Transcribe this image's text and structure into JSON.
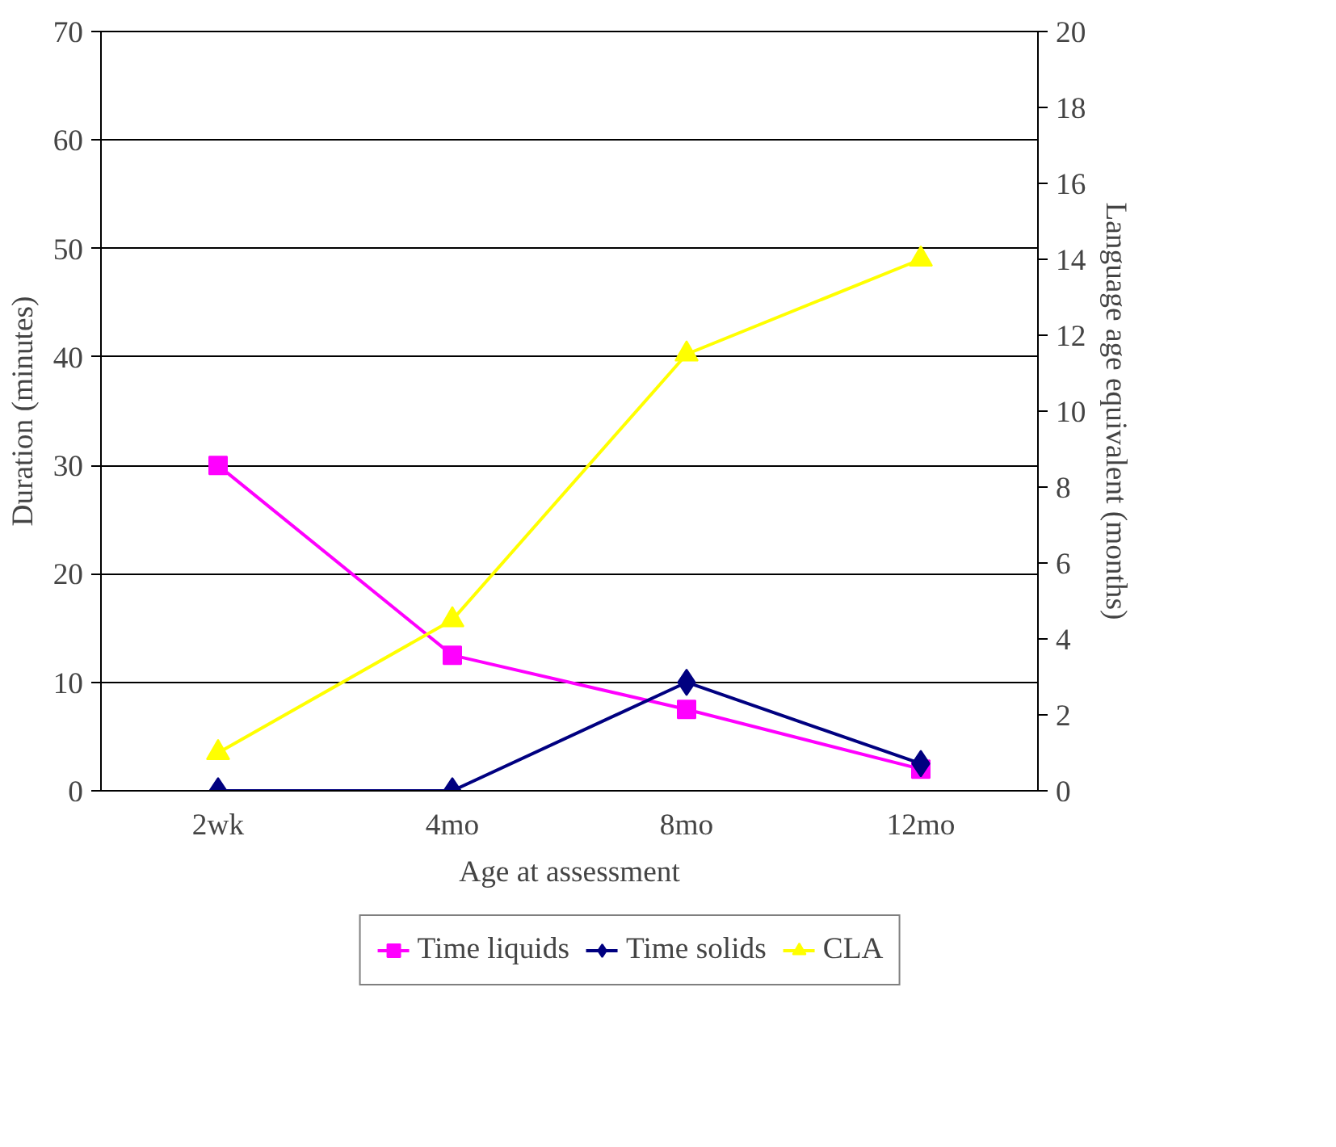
{
  "chart_data": {
    "type": "line",
    "xlabel": "Age at assessment",
    "ylabel": "Duration (minutes)",
    "y2label": "Language age equivalent (months)",
    "categories": [
      "2wk",
      "4mo",
      "8mo",
      "12mo"
    ],
    "series": [
      {
        "name": "Time liquids",
        "color": "#ff00ff",
        "marker": "square",
        "values": [
          30,
          12.5,
          7.5,
          2
        ]
      },
      {
        "name": "Time solids",
        "color": "#000080",
        "marker": "diamond",
        "values": [
          0,
          0,
          10,
          2.5
        ]
      },
      {
        "name": "CLA",
        "color": "#ffff00",
        "marker": "triangle",
        "axis": "y2",
        "values": [
          1.0,
          4.5,
          11.5,
          14
        ]
      }
    ],
    "ylim": [
      0,
      70
    ],
    "yticks": [
      0,
      10,
      20,
      30,
      40,
      50,
      60,
      70
    ],
    "y2lim": [
      0,
      20
    ],
    "y2ticks": [
      0,
      2,
      4,
      6,
      8,
      10,
      12,
      14,
      16,
      18,
      20
    ],
    "grid": "y",
    "legend": "bottom",
    "line_style": "solid"
  }
}
